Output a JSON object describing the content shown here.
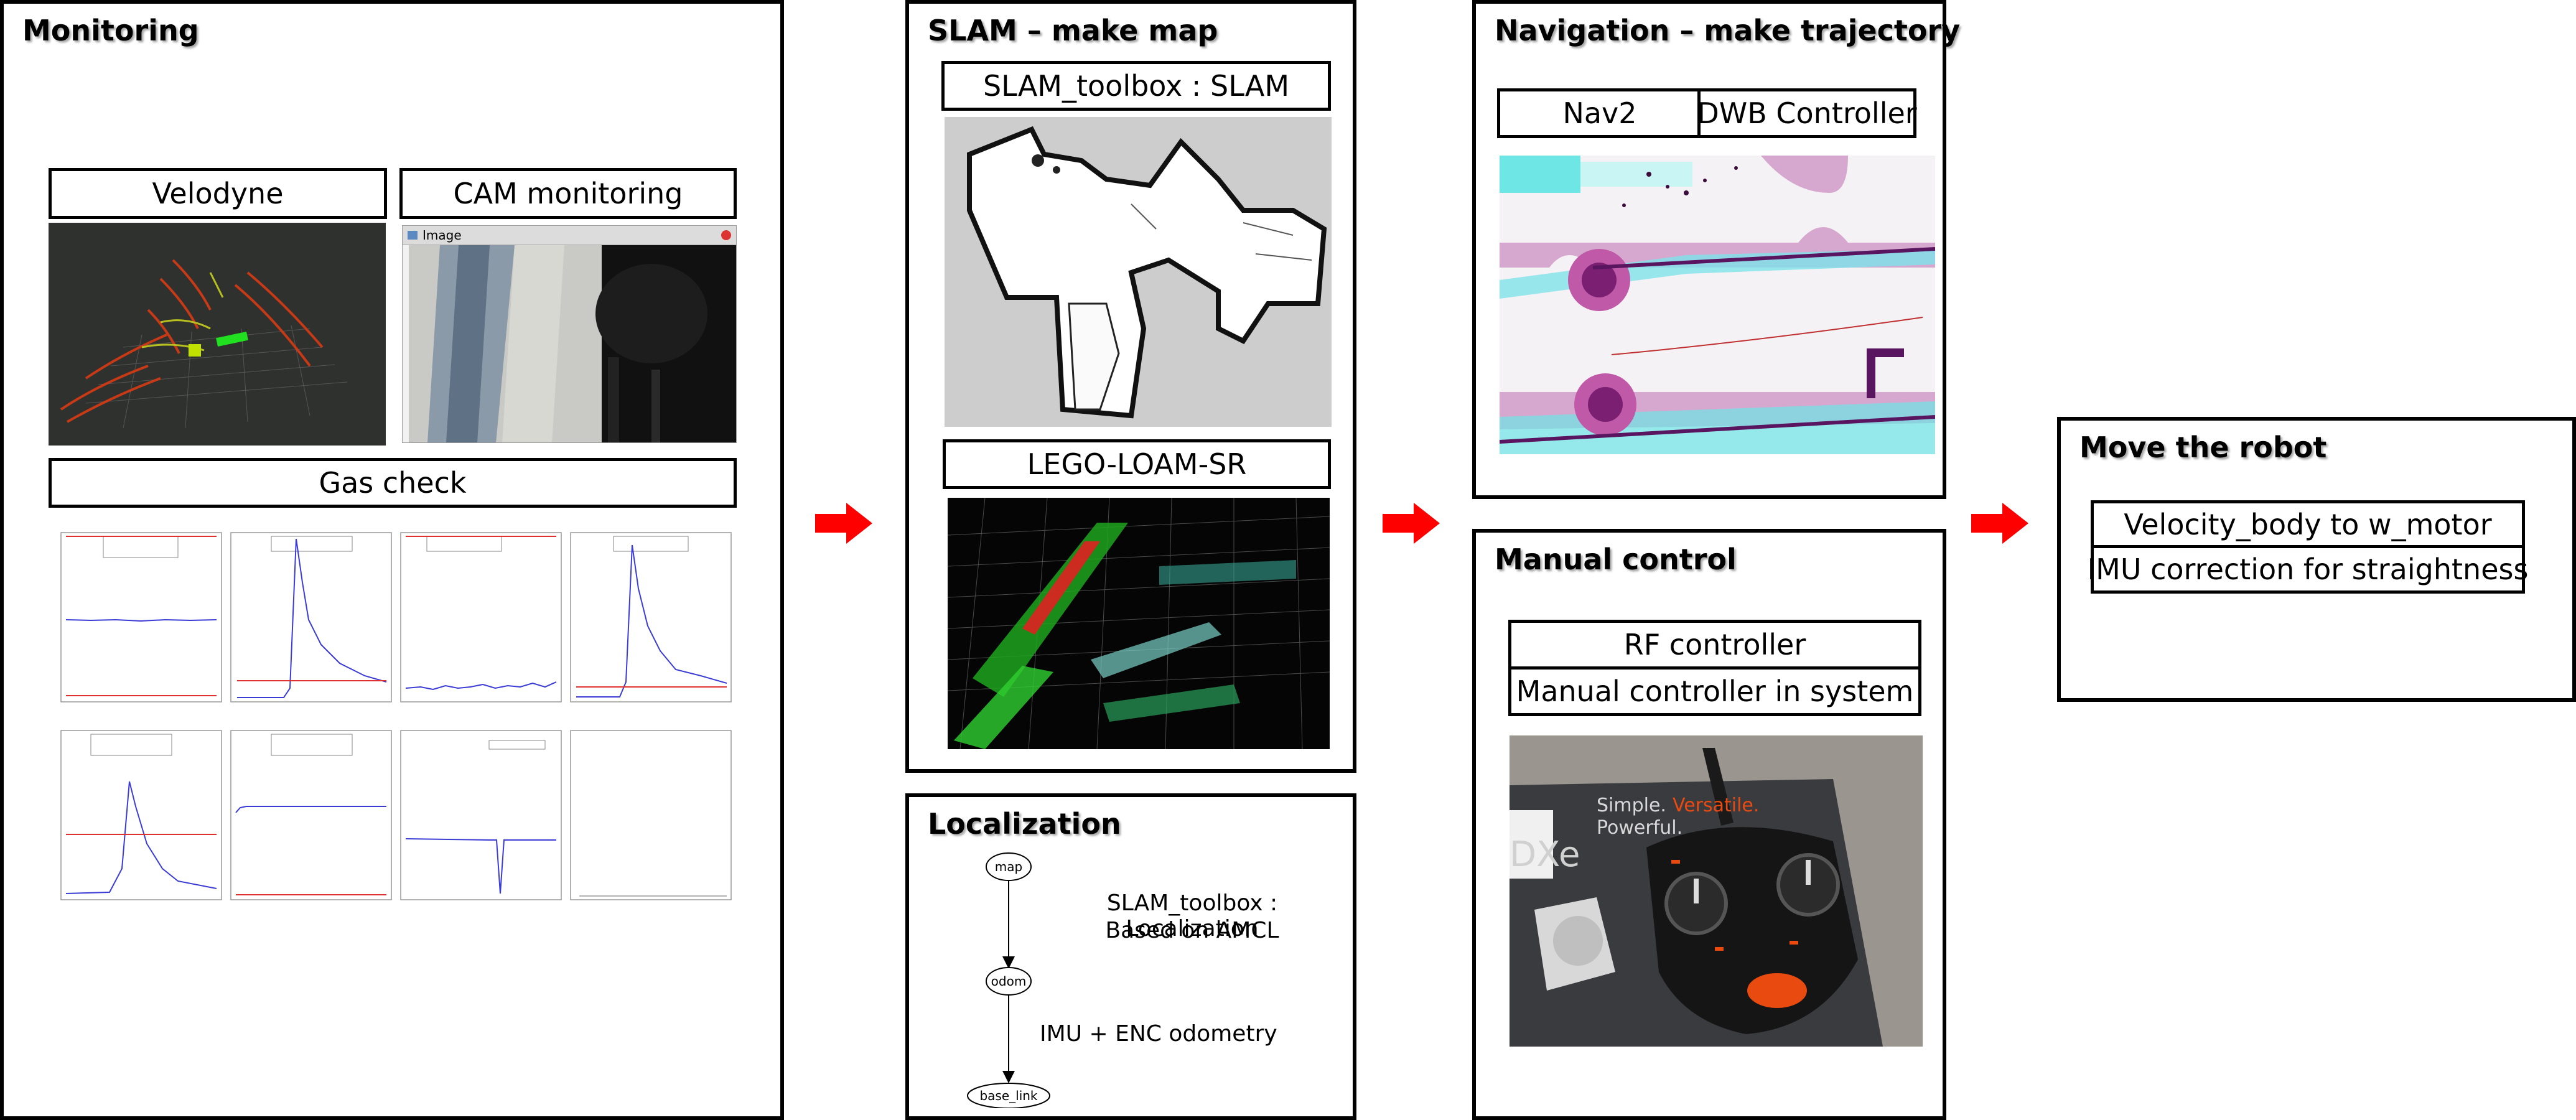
{
  "monitoring": {
    "title": "Monitoring",
    "velodyne_label": "Velodyne",
    "cam_label": "CAM monitoring",
    "cam_window_title": "Image",
    "gas_label": "Gas check"
  },
  "slam": {
    "title": "SLAM – make map",
    "slam_toolbox_label": "SLAM_toolbox : SLAM",
    "lego_label": "LEGO-LOAM-SR"
  },
  "localization": {
    "title": "Localization",
    "tf_nodes": [
      "map",
      "odom",
      "base_link"
    ],
    "desc_line1": "SLAM_toolbox : Localization",
    "desc_line2": "Based on AMCL",
    "odom_desc": "IMU + ENC odometry"
  },
  "navigation": {
    "title": "Navigation – make trajectory",
    "nav2_label": "Nav2",
    "dwb_label": "DWB Controller"
  },
  "manual": {
    "title": "Manual control",
    "rf_label": "RF controller",
    "system_label": "Manual controller in system",
    "photo_text1": "Simple.",
    "photo_text2": "Versatile.",
    "photo_text3": "Powerful.",
    "photo_brand": "DXe"
  },
  "move": {
    "title": "Move the robot",
    "velocity_label": "Velocity_body to w_motor",
    "imu_label": "IMU correction for straightness"
  },
  "colors": {
    "arrow": "#ff0000",
    "plot_line": "#3b3bd6",
    "threshold_line": "#e03030"
  }
}
